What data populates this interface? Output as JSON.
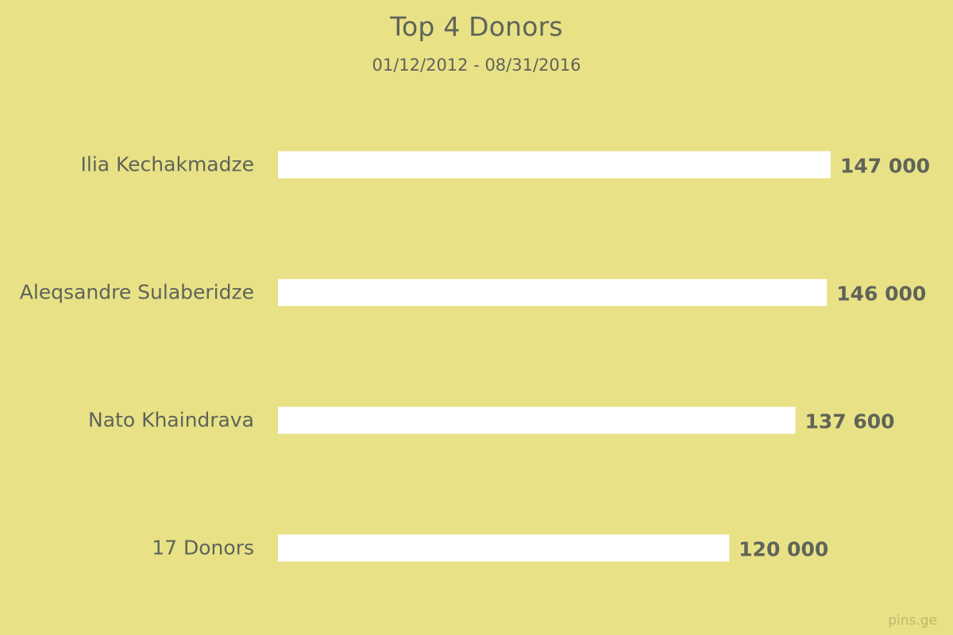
{
  "chart_data": {
    "type": "bar",
    "orientation": "horizontal",
    "title": "Top 4 Donors",
    "subtitle": "01/12/2012 - 08/31/2016",
    "categories": [
      "Ilia Kechakmadze",
      "Aleqsandre Sulaberidze",
      "Nato Khaindrava",
      "17 Donors"
    ],
    "values": [
      147000,
      146000,
      137600,
      120000
    ],
    "value_labels": [
      "147 000",
      "146 000",
      "137 600",
      "120 000"
    ],
    "xlim": [
      0,
      147000
    ],
    "xlabel": "",
    "ylabel": "",
    "grid": false,
    "legend": "none"
  },
  "colors": {
    "background": "#e9e186",
    "bar": "#ffffff",
    "text": "#5e6459",
    "watermark": "#bfb66a"
  },
  "watermark": "pins.ge"
}
